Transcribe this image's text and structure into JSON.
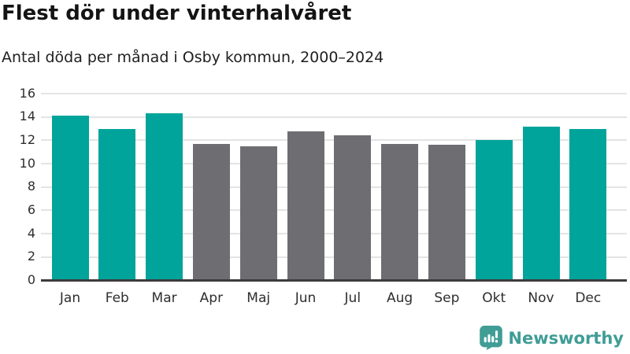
{
  "header": {
    "title": "Flest dör under vinterhalvåret",
    "subtitle": "Antal döda per månad i Osby kommun, 2000–2024"
  },
  "footer": {
    "brand": "Newsworthy",
    "logo_icon": "newsworthy-speech-bubble-bar-chart-icon",
    "brand_color": "#3f9d96"
  },
  "colors": {
    "highlight_teal": "#00a49b",
    "muted_gray": "#6e6e72",
    "gridline": "#e4e4e4",
    "axis_baseline": "#3c3c3c",
    "text_dark": "#141414",
    "axis_text": "#2e2e2e"
  },
  "chart_data": {
    "type": "bar",
    "title": "Flest dör under vinterhalvåret",
    "subtitle": "Antal döda per månad i Osby kommun, 2000–2024",
    "categories": [
      "Jan",
      "Feb",
      "Mar",
      "Apr",
      "Maj",
      "Jun",
      "Jul",
      "Aug",
      "Sep",
      "Okt",
      "Nov",
      "Dec"
    ],
    "values": [
      14.1,
      13.0,
      14.3,
      11.7,
      11.5,
      12.8,
      12.4,
      11.7,
      11.6,
      12.0,
      13.2,
      13.0
    ],
    "bar_colors": [
      "#00a49b",
      "#00a49b",
      "#00a49b",
      "#6e6e72",
      "#6e6e72",
      "#6e6e72",
      "#6e6e72",
      "#6e6e72",
      "#6e6e72",
      "#00a49b",
      "#00a49b",
      "#00a49b"
    ],
    "highlighted_categories": [
      "Jan",
      "Feb",
      "Mar",
      "Okt",
      "Nov",
      "Dec"
    ],
    "xlabel": "",
    "ylabel": "",
    "ylim": [
      0,
      16
    ],
    "ytick_step": 2,
    "yticks": [
      0,
      2,
      4,
      6,
      8,
      10,
      12,
      14,
      16
    ],
    "grid": "horizontal",
    "legend": "none"
  }
}
